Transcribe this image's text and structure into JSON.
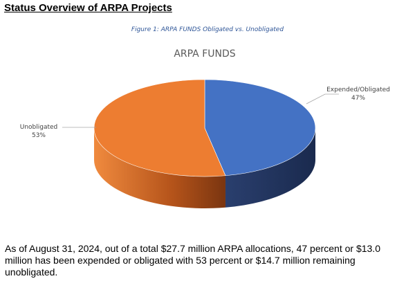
{
  "header": {
    "title": "Status Overview of ARPA Projects",
    "figure_caption": "Figure 1: ARPA FUNDS Obligated vs. Unobligated"
  },
  "chart_data": {
    "type": "pie",
    "title": "ARPA FUNDS",
    "categories": [
      "Expended/Obligated",
      "Unobligated"
    ],
    "values": [
      47,
      53
    ],
    "labels": [
      {
        "name": "Expended/Obligated",
        "pct": "47%"
      },
      {
        "name": "Unobligated",
        "pct": "53%"
      }
    ],
    "colors": [
      "#4472c4",
      "#ed7d31"
    ],
    "style": "3d",
    "legend": "none"
  },
  "body": {
    "paragraph": "As of August 31, 2024, out of a total $27.7 million ARPA allocations, 47 percent or $13.0 million has been expended or obligated with 53 percent or $14.7 million remaining unobligated."
  }
}
